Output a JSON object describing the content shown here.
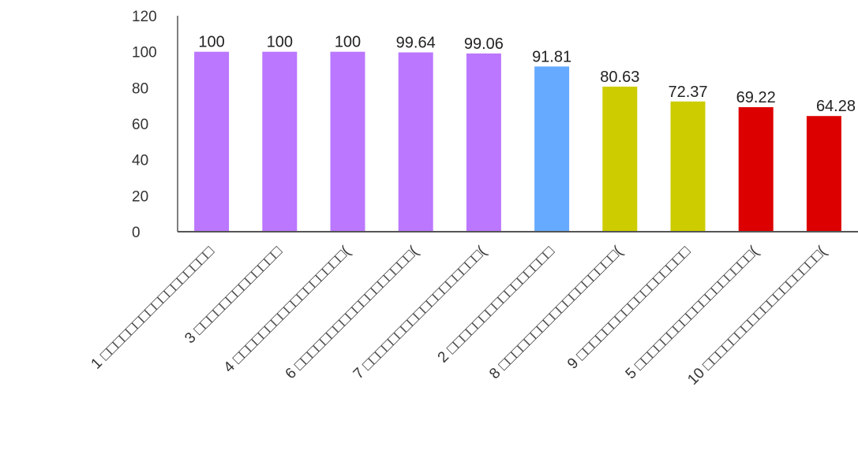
{
  "chart_data": {
    "type": "bar",
    "title": "",
    "xlabel": "",
    "ylabel": "",
    "ylim": [
      0,
      120
    ],
    "yticks": [
      0,
      20,
      40,
      60,
      80,
      100,
      120
    ],
    "grid": false,
    "legend": "none",
    "categories": [
      "1 □□□□□□□□□□□□□□□□□",
      "3 □□□□□□□□□□□□□",
      "4 □□□□□□□□□□□□□□□□□(",
      "6 □□□□□□□□□□□□□□□□□□(",
      "7 □□□□□□□□□□□□□□□□□□(",
      "2 □□□□□□□□□□□□□□□□",
      "8 □□□□□□□□□□□□□□□□□□(",
      "9 □□□□□□□□□□□□□□□□□",
      "5 □□□□□□□□□□□□□□□□□□(",
      "10 □□□□□□□□□□□□□□□□□□("
    ],
    "values": [
      100,
      100,
      100,
      99.64,
      99.06,
      91.81,
      80.63,
      72.37,
      69.22,
      64.28
    ],
    "value_labels": [
      "100",
      "100",
      "100",
      "99.64",
      "99.06",
      "91.81",
      "80.63",
      "72.37",
      "69.22",
      "64.28"
    ],
    "colors": [
      "#bb77ff",
      "#bb77ff",
      "#bb77ff",
      "#bb77ff",
      "#bb77ff",
      "#66aaff",
      "#cccc00",
      "#cccc00",
      "#dd0000",
      "#dd0000"
    ],
    "axis_color": "#555555"
  }
}
